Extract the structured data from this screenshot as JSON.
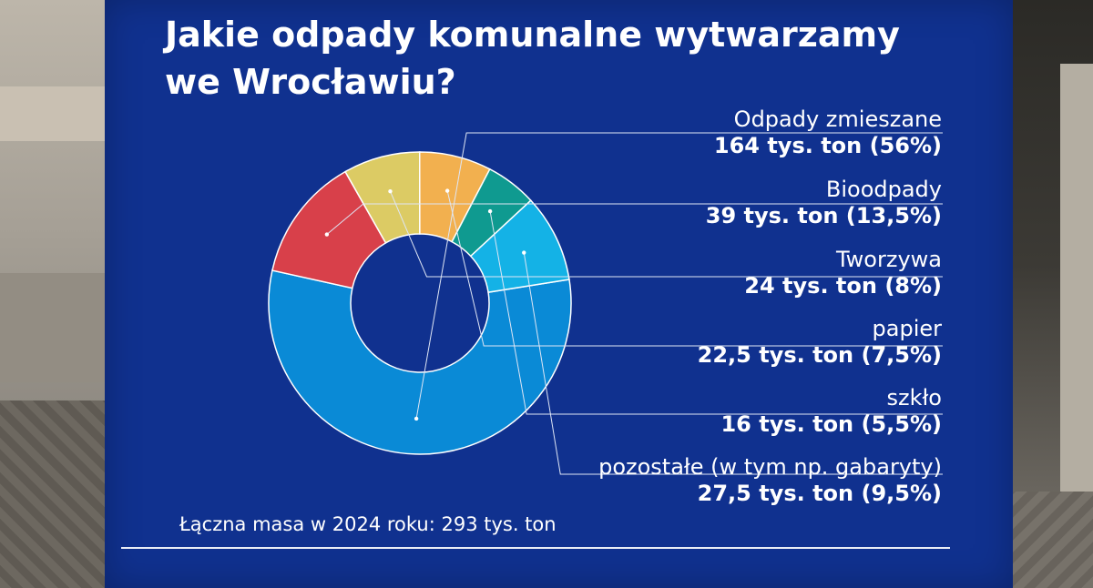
{
  "chart_data": {
    "type": "pie",
    "title": "Jakie odpady komunalne wytwarzamy we Wrocławiu?",
    "title_lines": [
      "Jakie odpady komunalne wytwarzamy",
      "we Wrocławiu?"
    ],
    "unit": "tys. ton",
    "slices": [
      {
        "name": "Odpady zmieszane",
        "value": 164,
        "percent": 56,
        "value_label": "164 tys. ton (56%)",
        "color": "#0a8ad6"
      },
      {
        "name": "Bioodpady",
        "value": 39,
        "percent": 13.5,
        "value_label": "39 tys. ton (13,5%)",
        "color": "#d8404a"
      },
      {
        "name": "Tworzywa",
        "value": 24,
        "percent": 8,
        "value_label": "24 tys. ton (8%)",
        "color": "#dccb64"
      },
      {
        "name": "papier",
        "value": 22.5,
        "percent": 7.5,
        "value_label": "22,5 tys. ton (7,5%)",
        "color": "#f2b04f"
      },
      {
        "name": "szkło",
        "value": 16,
        "percent": 5.5,
        "value_label": "16 tys. ton (5,5%)",
        "color": "#0f9a90"
      },
      {
        "name": "pozostałe (w tym np. gabaryty)",
        "value": 27.5,
        "percent": 9.5,
        "value_label": "27,5 tys. ton (9,5%)",
        "color": "#14b2e6"
      }
    ],
    "total_note": "Łączna masa w 2024 roku: 293 tys. ton",
    "legend_placement": "right"
  }
}
